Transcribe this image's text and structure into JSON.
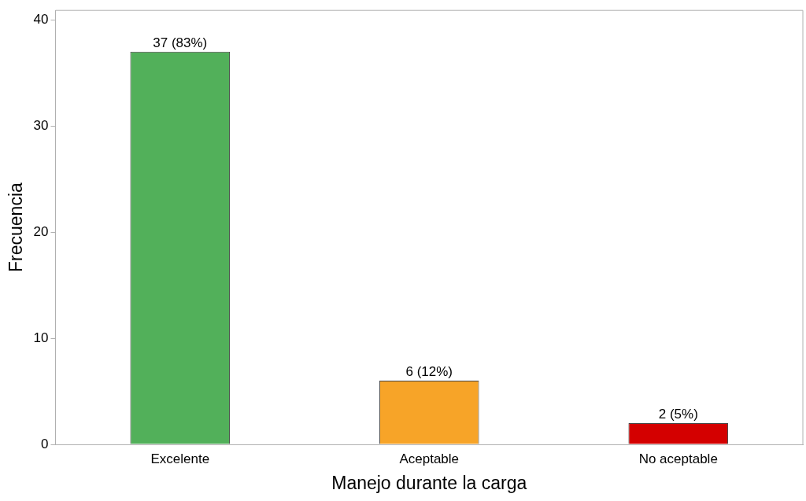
{
  "chart_data": {
    "type": "bar",
    "xlabel": "Manejo durante la carga",
    "ylabel": "Frecuencia",
    "categories": [
      "Excelente",
      "Aceptable",
      "No aceptable"
    ],
    "values": [
      37,
      6,
      2
    ],
    "colors": [
      "#52b05a",
      "#f7a428",
      "#d40000"
    ],
    "value_labels": [
      "37 (83%)",
      "6 (12%)",
      "2 (5%)"
    ],
    "ylim": [
      0,
      40.9
    ],
    "yticks": [
      0,
      10,
      20,
      30,
      40
    ],
    "grid": false,
    "legend": false
  }
}
